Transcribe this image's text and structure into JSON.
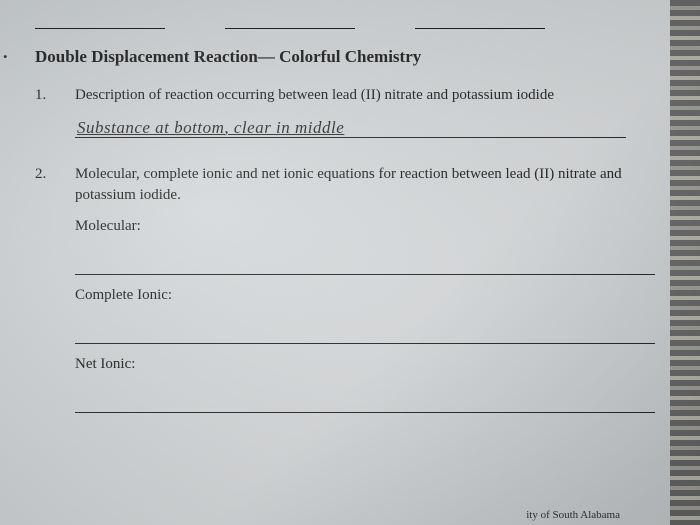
{
  "marginMark": ".",
  "title": "Double Displacement Reaction— Colorful Chemistry",
  "items": {
    "q1": {
      "num": "1.",
      "prompt": "Description of reaction occurring between lead (II) nitrate and potassium iodide",
      "handwritten": "Substance at bottom, clear in middle"
    },
    "q2": {
      "num": "2.",
      "prompt": "Molecular, complete ionic and net ionic equations for reaction between lead (II) nitrate and potassium iodide.",
      "labels": {
        "molecular": "Molecular:",
        "completeIonic": "Complete Ionic:",
        "netIonic": "Net Ionic:"
      }
    }
  },
  "footer": "ity of South Alabama",
  "colors": {
    "paper_tint": "#d4d8da",
    "ink": "#1a1a1a",
    "line": "#222222"
  }
}
